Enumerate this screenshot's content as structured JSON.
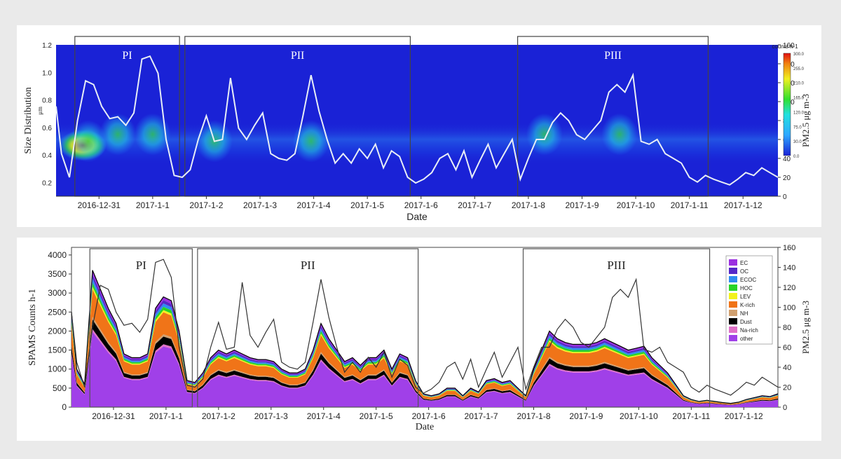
{
  "colors": {
    "heat_bg": "#1a22d6",
    "white_line": "#e8eef6",
    "ec": "#9b30e0",
    "oc": "#5528c8",
    "ecoc": "#2f8cf0",
    "hoc": "#28d428",
    "lev": "#f2f21c",
    "krich": "#f07418",
    "nh": "#d0a070",
    "dust": "#000000",
    "narich": "#e070c8",
    "other": "#a040e8"
  },
  "top": {
    "periods": [
      "PI",
      "PII",
      "PIII"
    ],
    "xlabel": "Date",
    "ylabel_left": "Size Distribution",
    "ylabel_left_unit": "μm",
    "ylabel_right": "PM2.5 μg m-3",
    "colorbar_title": "counts h-1",
    "colorbar_ticks": [
      "300.0",
      "255.0",
      "210.0",
      "165.0",
      "120.0",
      "75.0",
      "30.0",
      "0.0"
    ],
    "yticks_left": [
      "1.2",
      "1.0",
      "0.8",
      "0.6",
      "0.4",
      "0.2"
    ],
    "yticks_right": [
      "160",
      "140",
      "120",
      "100",
      "80",
      "60",
      "40",
      "20",
      "0"
    ],
    "xticks": [
      "2016-12-31",
      "2017-1-1",
      "2017-1-2",
      "2017-1-3",
      "2017-1-4",
      "2017-1-5",
      "2017-1-6",
      "2017-1-7",
      "2017-1-8",
      "2017-1-9",
      "2017-1-10",
      "2017-1-11",
      "2017-1-12"
    ]
  },
  "bottom": {
    "periods": [
      "PI",
      "PII",
      "PIII"
    ],
    "xlabel": "Date",
    "ylabel_left": "SPAMS Counts h-1",
    "ylabel_right": "PM2.5 μg m-3",
    "yticks_left": [
      "4000",
      "3500",
      "3000",
      "2500",
      "2000",
      "1500",
      "1000",
      "500",
      "0"
    ],
    "yticks_right": [
      "160",
      "140",
      "120",
      "100",
      "80",
      "60",
      "40",
      "20",
      "0"
    ],
    "xticks": [
      "2016-12-31",
      "2017-1-1",
      "2017-1-2",
      "2017-1-3",
      "2017-1-4",
      "2017-1-5",
      "2017-1-6",
      "2017-1-7",
      "2017-1-8",
      "2017-1-9",
      "2017-1-10",
      "2017-1-11",
      "2017-1-12"
    ],
    "legend": [
      "EC",
      "OC",
      "ECOC",
      "HOC",
      "LEV",
      "K-rich",
      "NH",
      "Dust",
      "Na-rich",
      "other"
    ]
  },
  "chart_data": [
    {
      "type": "heatmap",
      "title": "",
      "xlabel": "Date",
      "ylabel": "Size Distribution (μm)",
      "y2label": "PM2.5 (μg m-3)",
      "ylim": [
        0.1,
        1.2
      ],
      "y2lim": [
        0,
        160
      ],
      "periods": [
        {
          "name": "PI",
          "start": -0.45,
          "end": 1.5
        },
        {
          "name": "PII",
          "start": 1.6,
          "end": 5.8
        },
        {
          "name": "PIII",
          "start": 7.8,
          "end": 11.35
        }
      ],
      "x": [
        -0.8,
        -0.7,
        -0.55,
        -0.4,
        -0.25,
        -0.1,
        0.05,
        0.2,
        0.35,
        0.5,
        0.65,
        0.8,
        0.95,
        1.1,
        1.25,
        1.4,
        1.55,
        1.7,
        1.85,
        2.0,
        2.15,
        2.3,
        2.45,
        2.6,
        2.75,
        2.9,
        3.05,
        3.2,
        3.35,
        3.5,
        3.65,
        3.8,
        3.95,
        4.1,
        4.25,
        4.4,
        4.55,
        4.7,
        4.85,
        5.0,
        5.15,
        5.3,
        5.45,
        5.6,
        5.75,
        5.9,
        6.05,
        6.2,
        6.35,
        6.5,
        6.65,
        6.8,
        6.95,
        7.1,
        7.25,
        7.4,
        7.55,
        7.7,
        7.85,
        8.0,
        8.15,
        8.3,
        8.45,
        8.6,
        8.75,
        8.9,
        9.05,
        9.2,
        9.35,
        9.5,
        9.65,
        9.8,
        9.95,
        10.1,
        10.25,
        10.4,
        10.55,
        10.7,
        10.85,
        11.0,
        11.15,
        11.3,
        11.45,
        11.6,
        11.75,
        11.9,
        12.05,
        12.2,
        12.35,
        12.5,
        12.65
      ],
      "pm25": [
        95,
        45,
        20,
        80,
        122,
        118,
        95,
        82,
        84,
        75,
        88,
        145,
        148,
        130,
        60,
        22,
        20,
        28,
        60,
        85,
        58,
        60,
        125,
        72,
        60,
        75,
        88,
        45,
        40,
        38,
        45,
        85,
        128,
        90,
        60,
        35,
        45,
        35,
        50,
        40,
        55,
        30,
        48,
        42,
        20,
        14,
        18,
        25,
        40,
        45,
        28,
        48,
        20,
        38,
        55,
        30,
        45,
        60,
        18,
        40,
        60,
        60,
        78,
        88,
        80,
        65,
        60,
        70,
        80,
        110,
        118,
        110,
        128,
        58,
        55,
        60,
        45,
        40,
        35,
        20,
        15,
        22,
        18,
        15,
        12,
        18,
        25,
        22,
        30,
        25,
        20
      ],
      "hotspots": [
        {
          "x": -0.3,
          "size": 0.47,
          "intensity": 300
        },
        {
          "x": -0.2,
          "size": 0.5,
          "intensity": 200
        },
        {
          "x": 0.35,
          "size": 0.55,
          "intensity": 120
        },
        {
          "x": 1.0,
          "size": 0.55,
          "intensity": 150
        },
        {
          "x": 2.15,
          "size": 0.5,
          "intensity": 110
        },
        {
          "x": 3.95,
          "size": 0.5,
          "intensity": 120
        },
        {
          "x": 8.3,
          "size": 0.55,
          "intensity": 100
        },
        {
          "x": 9.7,
          "size": 0.55,
          "intensity": 110
        }
      ]
    },
    {
      "type": "area",
      "title": "",
      "xlabel": "Date",
      "ylabel": "SPAMS Counts h-1",
      "y2label": "PM2.5 (μg m-3)",
      "ylim": [
        0,
        4200
      ],
      "y2lim": [
        0,
        160
      ],
      "periods": [
        {
          "name": "PI",
          "start": -0.45,
          "end": 1.5
        },
        {
          "name": "PII",
          "start": 1.6,
          "end": 5.8
        },
        {
          "name": "PIII",
          "start": 7.8,
          "end": 11.35
        }
      ],
      "x": [
        -0.8,
        -0.7,
        -0.55,
        -0.4,
        -0.25,
        -0.1,
        0.05,
        0.2,
        0.35,
        0.5,
        0.65,
        0.8,
        0.95,
        1.1,
        1.25,
        1.4,
        1.55,
        1.7,
        1.85,
        2.0,
        2.15,
        2.3,
        2.45,
        2.6,
        2.75,
        2.9,
        3.05,
        3.2,
        3.35,
        3.5,
        3.65,
        3.8,
        3.95,
        4.1,
        4.25,
        4.4,
        4.55,
        4.7,
        4.85,
        5.0,
        5.15,
        5.3,
        5.45,
        5.6,
        5.75,
        5.9,
        6.05,
        6.2,
        6.35,
        6.5,
        6.65,
        6.8,
        6.95,
        7.1,
        7.25,
        7.4,
        7.55,
        7.7,
        7.85,
        8.0,
        8.15,
        8.3,
        8.45,
        8.6,
        8.75,
        8.9,
        9.05,
        9.2,
        9.35,
        9.5,
        9.65,
        9.8,
        9.95,
        10.1,
        10.25,
        10.4,
        10.55,
        10.7,
        10.85,
        11.0,
        11.15,
        11.3,
        11.45,
        11.6,
        11.75,
        11.9,
        12.05,
        12.2,
        12.35,
        12.5,
        12.65
      ],
      "total": [
        2500,
        1000,
        600,
        3600,
        3100,
        2600,
        2200,
        1400,
        1300,
        1300,
        1400,
        2600,
        2900,
        2800,
        2000,
        700,
        650,
        900,
        1300,
        1500,
        1400,
        1500,
        1400,
        1300,
        1250,
        1250,
        1200,
        1000,
        900,
        900,
        1000,
        1500,
        2200,
        1800,
        1500,
        1200,
        1300,
        1100,
        1300,
        1300,
        1500,
        1000,
        1400,
        1300,
        700,
        350,
        300,
        350,
        500,
        500,
        300,
        500,
        400,
        700,
        750,
        650,
        700,
        500,
        300,
        1000,
        1500,
        2000,
        1800,
        1700,
        1650,
        1650,
        1650,
        1700,
        1800,
        1700,
        1600,
        1500,
        1550,
        1600,
        1300,
        1100,
        900,
        600,
        300,
        200,
        150,
        180,
        150,
        120,
        100,
        130,
        200,
        250,
        300,
        280,
        350
      ],
      "series": [
        {
          "name": "other",
          "frac": 0.55
        },
        {
          "name": "Na-rich",
          "frac": 0.02
        },
        {
          "name": "Dust",
          "frac": 0.07
        },
        {
          "name": "NH",
          "frac": 0.02
        },
        {
          "name": "K-rich",
          "frac": 0.2
        },
        {
          "name": "LEV",
          "frac": 0.02
        },
        {
          "name": "HOC",
          "frac": 0.03
        },
        {
          "name": "ECOC",
          "frac": 0.03
        },
        {
          "name": "OC",
          "frac": 0.03
        },
        {
          "name": "EC",
          "frac": 0.03
        }
      ],
      "pm25": [
        95,
        45,
        20,
        80,
        122,
        118,
        95,
        82,
        84,
        75,
        88,
        145,
        148,
        130,
        60,
        22,
        20,
        28,
        60,
        85,
        58,
        60,
        125,
        72,
        60,
        75,
        88,
        45,
        40,
        38,
        45,
        85,
        128,
        90,
        60,
        35,
        45,
        35,
        50,
        40,
        55,
        30,
        48,
        42,
        20,
        14,
        18,
        25,
        40,
        45,
        28,
        48,
        20,
        38,
        55,
        30,
        45,
        60,
        18,
        40,
        60,
        60,
        78,
        88,
        80,
        65,
        60,
        70,
        80,
        110,
        118,
        110,
        128,
        58,
        55,
        60,
        45,
        40,
        35,
        20,
        15,
        22,
        18,
        15,
        12,
        18,
        25,
        22,
        30,
        25,
        20
      ]
    }
  ]
}
